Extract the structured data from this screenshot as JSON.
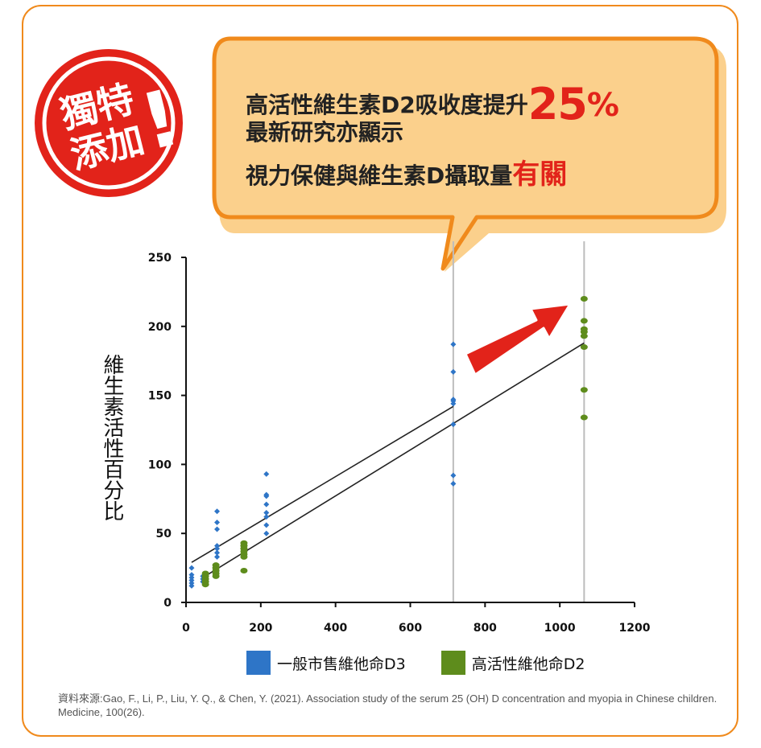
{
  "badge": {
    "line1": "獨特",
    "line2": "添加",
    "mark": "!"
  },
  "callout": {
    "line1_prefix": "高活性維生素D2吸收度提升",
    "line1_value": "25",
    "line1_unit": "%",
    "line2": "最新研究亦顯示",
    "line3_prefix": "視力保健與維生素D攝取量",
    "line3_emph": "有關"
  },
  "colors": {
    "frame": "#f08a1c",
    "callout_fill": "#fbd08c",
    "badge": "#e2231a",
    "d3": "#2e75c7",
    "d2": "#5e8c1c",
    "arrow": "#e2231a"
  },
  "chart_data": {
    "type": "scatter",
    "ylabel": "維生素活性百分比",
    "xlabel": "",
    "xlim": [
      0,
      1200
    ],
    "ylim": [
      0,
      250
    ],
    "x_ticks": [
      "0",
      "200",
      "400",
      "600",
      "800",
      "1000",
      "1200"
    ],
    "y_ticks": [
      "0",
      "50",
      "100",
      "150",
      "200",
      "250"
    ],
    "series": [
      {
        "name": "一般市售維他命D3",
        "color": "#2e75c7",
        "points": [
          [
            15,
            12
          ],
          [
            15,
            14
          ],
          [
            15,
            16
          ],
          [
            15,
            18
          ],
          [
            15,
            20
          ],
          [
            15,
            25
          ],
          [
            45,
            15
          ],
          [
            45,
            17
          ],
          [
            45,
            19
          ],
          [
            83,
            33
          ],
          [
            83,
            36
          ],
          [
            83,
            39
          ],
          [
            83,
            41
          ],
          [
            83,
            53
          ],
          [
            83,
            58
          ],
          [
            83,
            66
          ],
          [
            215,
            50
          ],
          [
            215,
            56
          ],
          [
            215,
            62
          ],
          [
            215,
            65
          ],
          [
            215,
            71
          ],
          [
            215,
            77
          ],
          [
            215,
            78
          ],
          [
            215,
            93
          ],
          [
            715,
            86
          ],
          [
            715,
            92
          ],
          [
            715,
            129
          ],
          [
            715,
            144
          ],
          [
            715,
            146
          ],
          [
            715,
            147
          ],
          [
            715,
            167
          ],
          [
            715,
            187
          ]
        ],
        "trend": [
          [
            15,
            29
          ],
          [
            715,
            142
          ]
        ]
      },
      {
        "name": "高活性維他命D2",
        "color": "#5e8c1c",
        "points": [
          [
            52,
            13
          ],
          [
            52,
            15
          ],
          [
            52,
            17
          ],
          [
            52,
            19
          ],
          [
            52,
            21
          ],
          [
            80,
            19
          ],
          [
            80,
            21
          ],
          [
            80,
            23
          ],
          [
            80,
            25
          ],
          [
            80,
            27
          ],
          [
            155,
            23
          ],
          [
            155,
            33
          ],
          [
            155,
            35
          ],
          [
            155,
            37
          ],
          [
            155,
            39
          ],
          [
            155,
            41
          ],
          [
            155,
            43
          ],
          [
            1065,
            134
          ],
          [
            1065,
            154
          ],
          [
            1065,
            185
          ],
          [
            1065,
            193
          ],
          [
            1065,
            196
          ],
          [
            1065,
            198
          ],
          [
            1065,
            204
          ],
          [
            1065,
            220
          ]
        ],
        "trend": [
          [
            45,
            18
          ],
          [
            1065,
            188
          ]
        ]
      }
    ],
    "vlines": [
      715,
      1065
    ],
    "legend": "bottom",
    "grid": false
  },
  "source": "資料來源:Gao, F., Li, P., Liu, Y. Q., & Chen, Y. (2021). Association study of the serum 25 (OH) D concentration and myopia in Chinese children. Medicine, 100(26)."
}
